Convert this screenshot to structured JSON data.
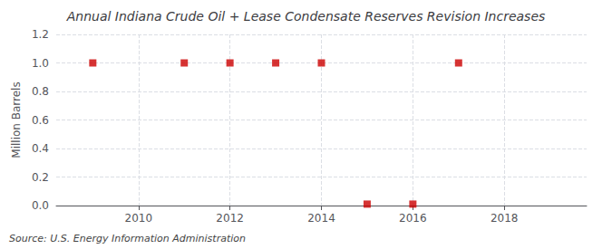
{
  "chart_data": {
    "type": "scatter",
    "title": "Annual Indiana Crude Oil + Lease Condensate Reserves Revision Increases",
    "y_label": "Million Barrels",
    "annotation": "Source: U.S. Energy Information Administration",
    "x": [
      2009,
      2011,
      2012,
      2013,
      2014,
      2015,
      2016,
      2017
    ],
    "values": [
      1.0,
      1.0,
      1.0,
      1.0,
      1.0,
      0.01,
      0.01,
      1.0
    ],
    "color": "#cc0000",
    "marker": "square",
    "xlim": [
      2008.2,
      2019.8
    ],
    "xticks": [
      2010,
      2012,
      2014,
      2016,
      2018
    ],
    "ylim": [
      0.0,
      1.2
    ],
    "yticks": [
      {
        "value": 0.0,
        "label": "0.0"
      },
      0.2,
      0.4,
      0.6,
      0.8,
      {
        "value": 1.0,
        "label": "1.0"
      },
      1.2
    ],
    "grid": true
  }
}
